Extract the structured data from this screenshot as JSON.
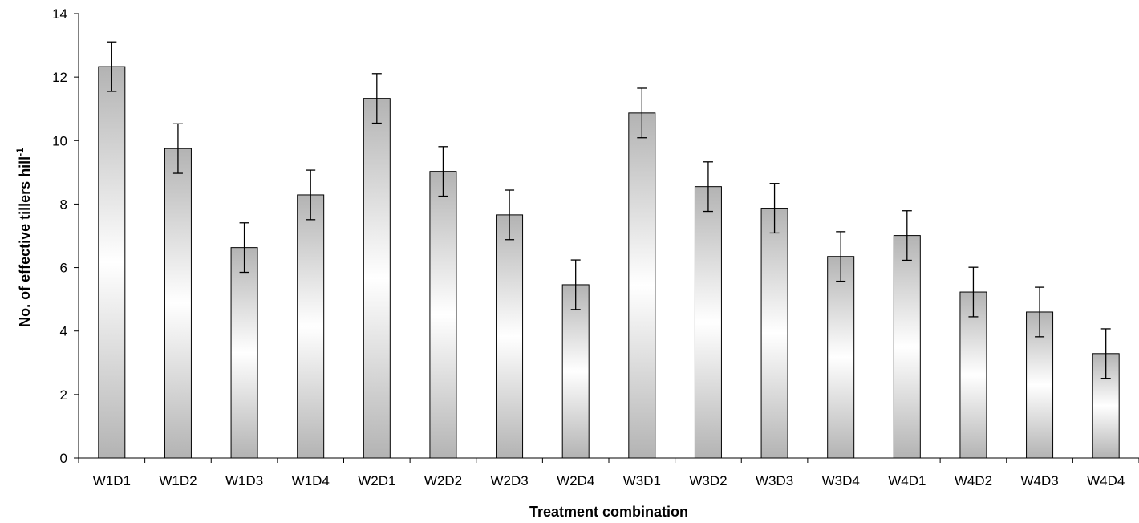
{
  "chart_data": {
    "type": "bar",
    "title": "",
    "xlabel": "Treatment combination",
    "ylabel": "No. of effective tillers hill",
    "ylabel_superscript": "-1",
    "ylim": [
      0,
      14
    ],
    "yticks": [
      "0",
      "2",
      "4",
      "6",
      "8",
      "10",
      "12",
      "14"
    ],
    "categories": [
      "W1D1",
      "W1D2",
      "W1D3",
      "W1D4",
      "W2D1",
      "W2D2",
      "W2D3",
      "W2D4",
      "W3D1",
      "W3D2",
      "W3D3",
      "W3D4",
      "W4D1",
      "W4D2",
      "W4D3",
      "W4D4"
    ],
    "values": [
      12.33,
      9.75,
      6.63,
      8.29,
      11.33,
      9.03,
      7.66,
      5.46,
      10.87,
      8.55,
      7.87,
      6.35,
      7.01,
      5.23,
      4.6,
      3.29
    ],
    "error": 0.78,
    "grid": false,
    "bar_fill": "gradient grey-white-grey",
    "colors": {
      "bar_edge": "#000000",
      "bar_dark": "#b3b3b3",
      "bar_light": "#ffffff"
    }
  }
}
